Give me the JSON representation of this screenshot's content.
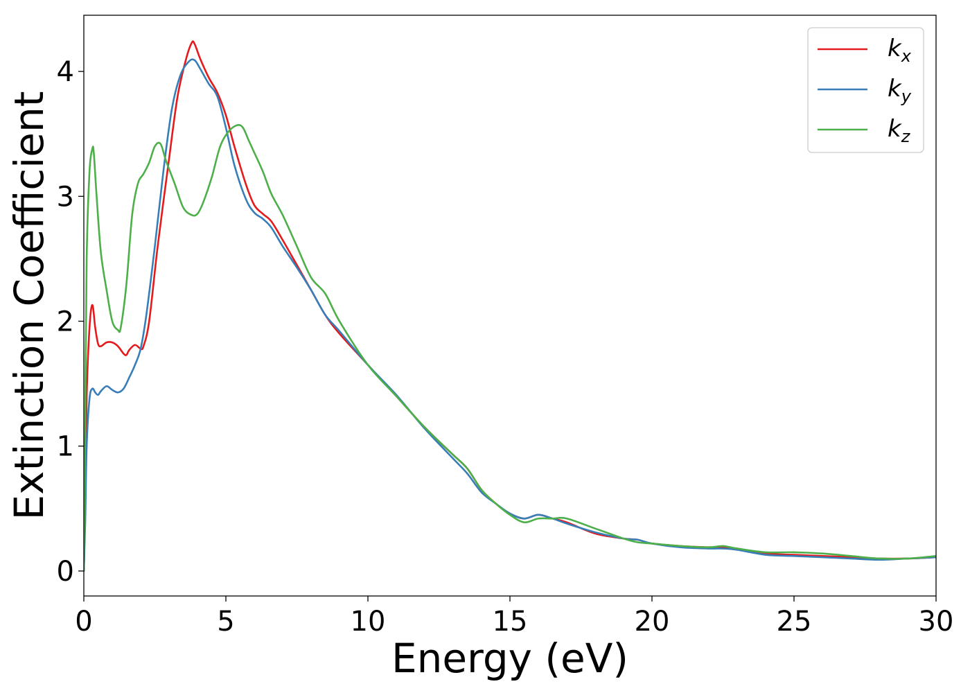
{
  "chart_data": {
    "type": "line",
    "title": "",
    "xlabel": "Energy (eV)",
    "ylabel": "Extinction Coefficient",
    "xlim": [
      0,
      30
    ],
    "ylim": [
      -0.2,
      4.45
    ],
    "xticks": [
      0,
      5,
      10,
      15,
      20,
      25,
      30
    ],
    "yticks": [
      0,
      1,
      2,
      3,
      4
    ],
    "grid": false,
    "legend_position": "top-right",
    "series": [
      {
        "name": "k_x",
        "label_base": "k",
        "label_sub": "x",
        "color": "#e41a1c",
        "x": [
          0,
          0.05,
          0.1,
          0.2,
          0.3,
          0.4,
          0.5,
          0.6,
          0.8,
          1.0,
          1.2,
          1.4,
          1.5,
          1.6,
          1.8,
          2.0,
          2.1,
          2.3,
          2.6,
          3.0,
          3.3,
          3.6,
          3.8,
          3.9,
          4.1,
          4.4,
          4.7,
          5.0,
          5.3,
          5.7,
          6.0,
          6.3,
          6.6,
          7.0,
          7.5,
          8.0,
          8.5,
          9.0,
          10,
          11,
          12,
          13,
          13.5,
          14,
          14.5,
          15,
          15.5,
          16,
          16.5,
          17,
          18,
          19,
          19.5,
          20,
          21,
          22,
          22.5,
          23,
          24,
          25,
          26,
          27,
          28,
          29,
          30
        ],
        "y": [
          0,
          0.6,
          1.4,
          1.95,
          2.13,
          1.95,
          1.82,
          1.8,
          1.83,
          1.83,
          1.8,
          1.74,
          1.73,
          1.77,
          1.81,
          1.78,
          1.8,
          2.0,
          2.6,
          3.3,
          3.8,
          4.1,
          4.23,
          4.22,
          4.1,
          3.95,
          3.83,
          3.65,
          3.4,
          3.1,
          2.93,
          2.86,
          2.8,
          2.65,
          2.45,
          2.25,
          2.05,
          1.9,
          1.65,
          1.4,
          1.15,
          0.93,
          0.82,
          0.65,
          0.54,
          0.46,
          0.42,
          0.45,
          0.42,
          0.39,
          0.3,
          0.26,
          0.25,
          0.22,
          0.2,
          0.19,
          0.19,
          0.18,
          0.14,
          0.13,
          0.12,
          0.11,
          0.1,
          0.1,
          0.11
        ]
      },
      {
        "name": "k_y",
        "label_base": "k",
        "label_sub": "y",
        "color": "#377eb8",
        "x": [
          0,
          0.05,
          0.1,
          0.2,
          0.3,
          0.4,
          0.5,
          0.6,
          0.8,
          1.0,
          1.2,
          1.4,
          1.6,
          1.8,
          2.0,
          2.2,
          2.5,
          2.8,
          3.1,
          3.4,
          3.7,
          3.9,
          4.1,
          4.4,
          4.7,
          5.0,
          5.3,
          5.7,
          6.0,
          6.3,
          6.6,
          7.0,
          7.5,
          8.0,
          8.5,
          9.0,
          10,
          11,
          12,
          13,
          13.5,
          14,
          14.5,
          15,
          15.5,
          16,
          16.5,
          17,
          18,
          19,
          19.5,
          20,
          21,
          22,
          22.5,
          23,
          24,
          25,
          26,
          27,
          28,
          29,
          30
        ],
        "y": [
          0,
          0.4,
          1.0,
          1.38,
          1.46,
          1.43,
          1.41,
          1.44,
          1.48,
          1.45,
          1.43,
          1.46,
          1.55,
          1.65,
          1.78,
          2.05,
          2.6,
          3.2,
          3.7,
          3.97,
          4.08,
          4.09,
          4.02,
          3.9,
          3.8,
          3.55,
          3.25,
          2.98,
          2.87,
          2.82,
          2.75,
          2.6,
          2.43,
          2.25,
          2.05,
          1.92,
          1.65,
          1.41,
          1.14,
          0.9,
          0.78,
          0.63,
          0.54,
          0.46,
          0.42,
          0.45,
          0.42,
          0.38,
          0.31,
          0.26,
          0.25,
          0.22,
          0.19,
          0.18,
          0.18,
          0.17,
          0.13,
          0.12,
          0.11,
          0.1,
          0.09,
          0.1,
          0.11
        ]
      },
      {
        "name": "k_z",
        "label_base": "k",
        "label_sub": "z",
        "color": "#4daf4a",
        "x": [
          0,
          0.05,
          0.1,
          0.2,
          0.3,
          0.35,
          0.45,
          0.6,
          0.8,
          1.0,
          1.2,
          1.3,
          1.5,
          1.7,
          1.9,
          2.1,
          2.3,
          2.5,
          2.7,
          2.9,
          3.2,
          3.5,
          3.8,
          4.0,
          4.2,
          4.5,
          4.8,
          5.1,
          5.4,
          5.6,
          5.8,
          6.0,
          6.3,
          6.6,
          7.0,
          7.5,
          8.0,
          8.5,
          9.0,
          10,
          11,
          12,
          13,
          13.5,
          14,
          14.5,
          15,
          15.5,
          16,
          16.5,
          17,
          18,
          19,
          19.5,
          20,
          21,
          22,
          22.5,
          23,
          24,
          25,
          26,
          27,
          28,
          29,
          30
        ],
        "y": [
          0,
          1.2,
          2.5,
          3.2,
          3.38,
          3.35,
          3.0,
          2.55,
          2.25,
          2.0,
          1.93,
          1.95,
          2.3,
          2.85,
          3.1,
          3.18,
          3.27,
          3.4,
          3.42,
          3.28,
          3.1,
          2.91,
          2.85,
          2.86,
          2.95,
          3.15,
          3.4,
          3.52,
          3.57,
          3.55,
          3.45,
          3.35,
          3.2,
          3.02,
          2.85,
          2.6,
          2.35,
          2.22,
          2.0,
          1.65,
          1.4,
          1.15,
          0.93,
          0.82,
          0.65,
          0.54,
          0.45,
          0.39,
          0.42,
          0.42,
          0.42,
          0.34,
          0.26,
          0.23,
          0.22,
          0.2,
          0.19,
          0.2,
          0.18,
          0.15,
          0.15,
          0.14,
          0.12,
          0.1,
          0.1,
          0.12
        ]
      }
    ]
  }
}
